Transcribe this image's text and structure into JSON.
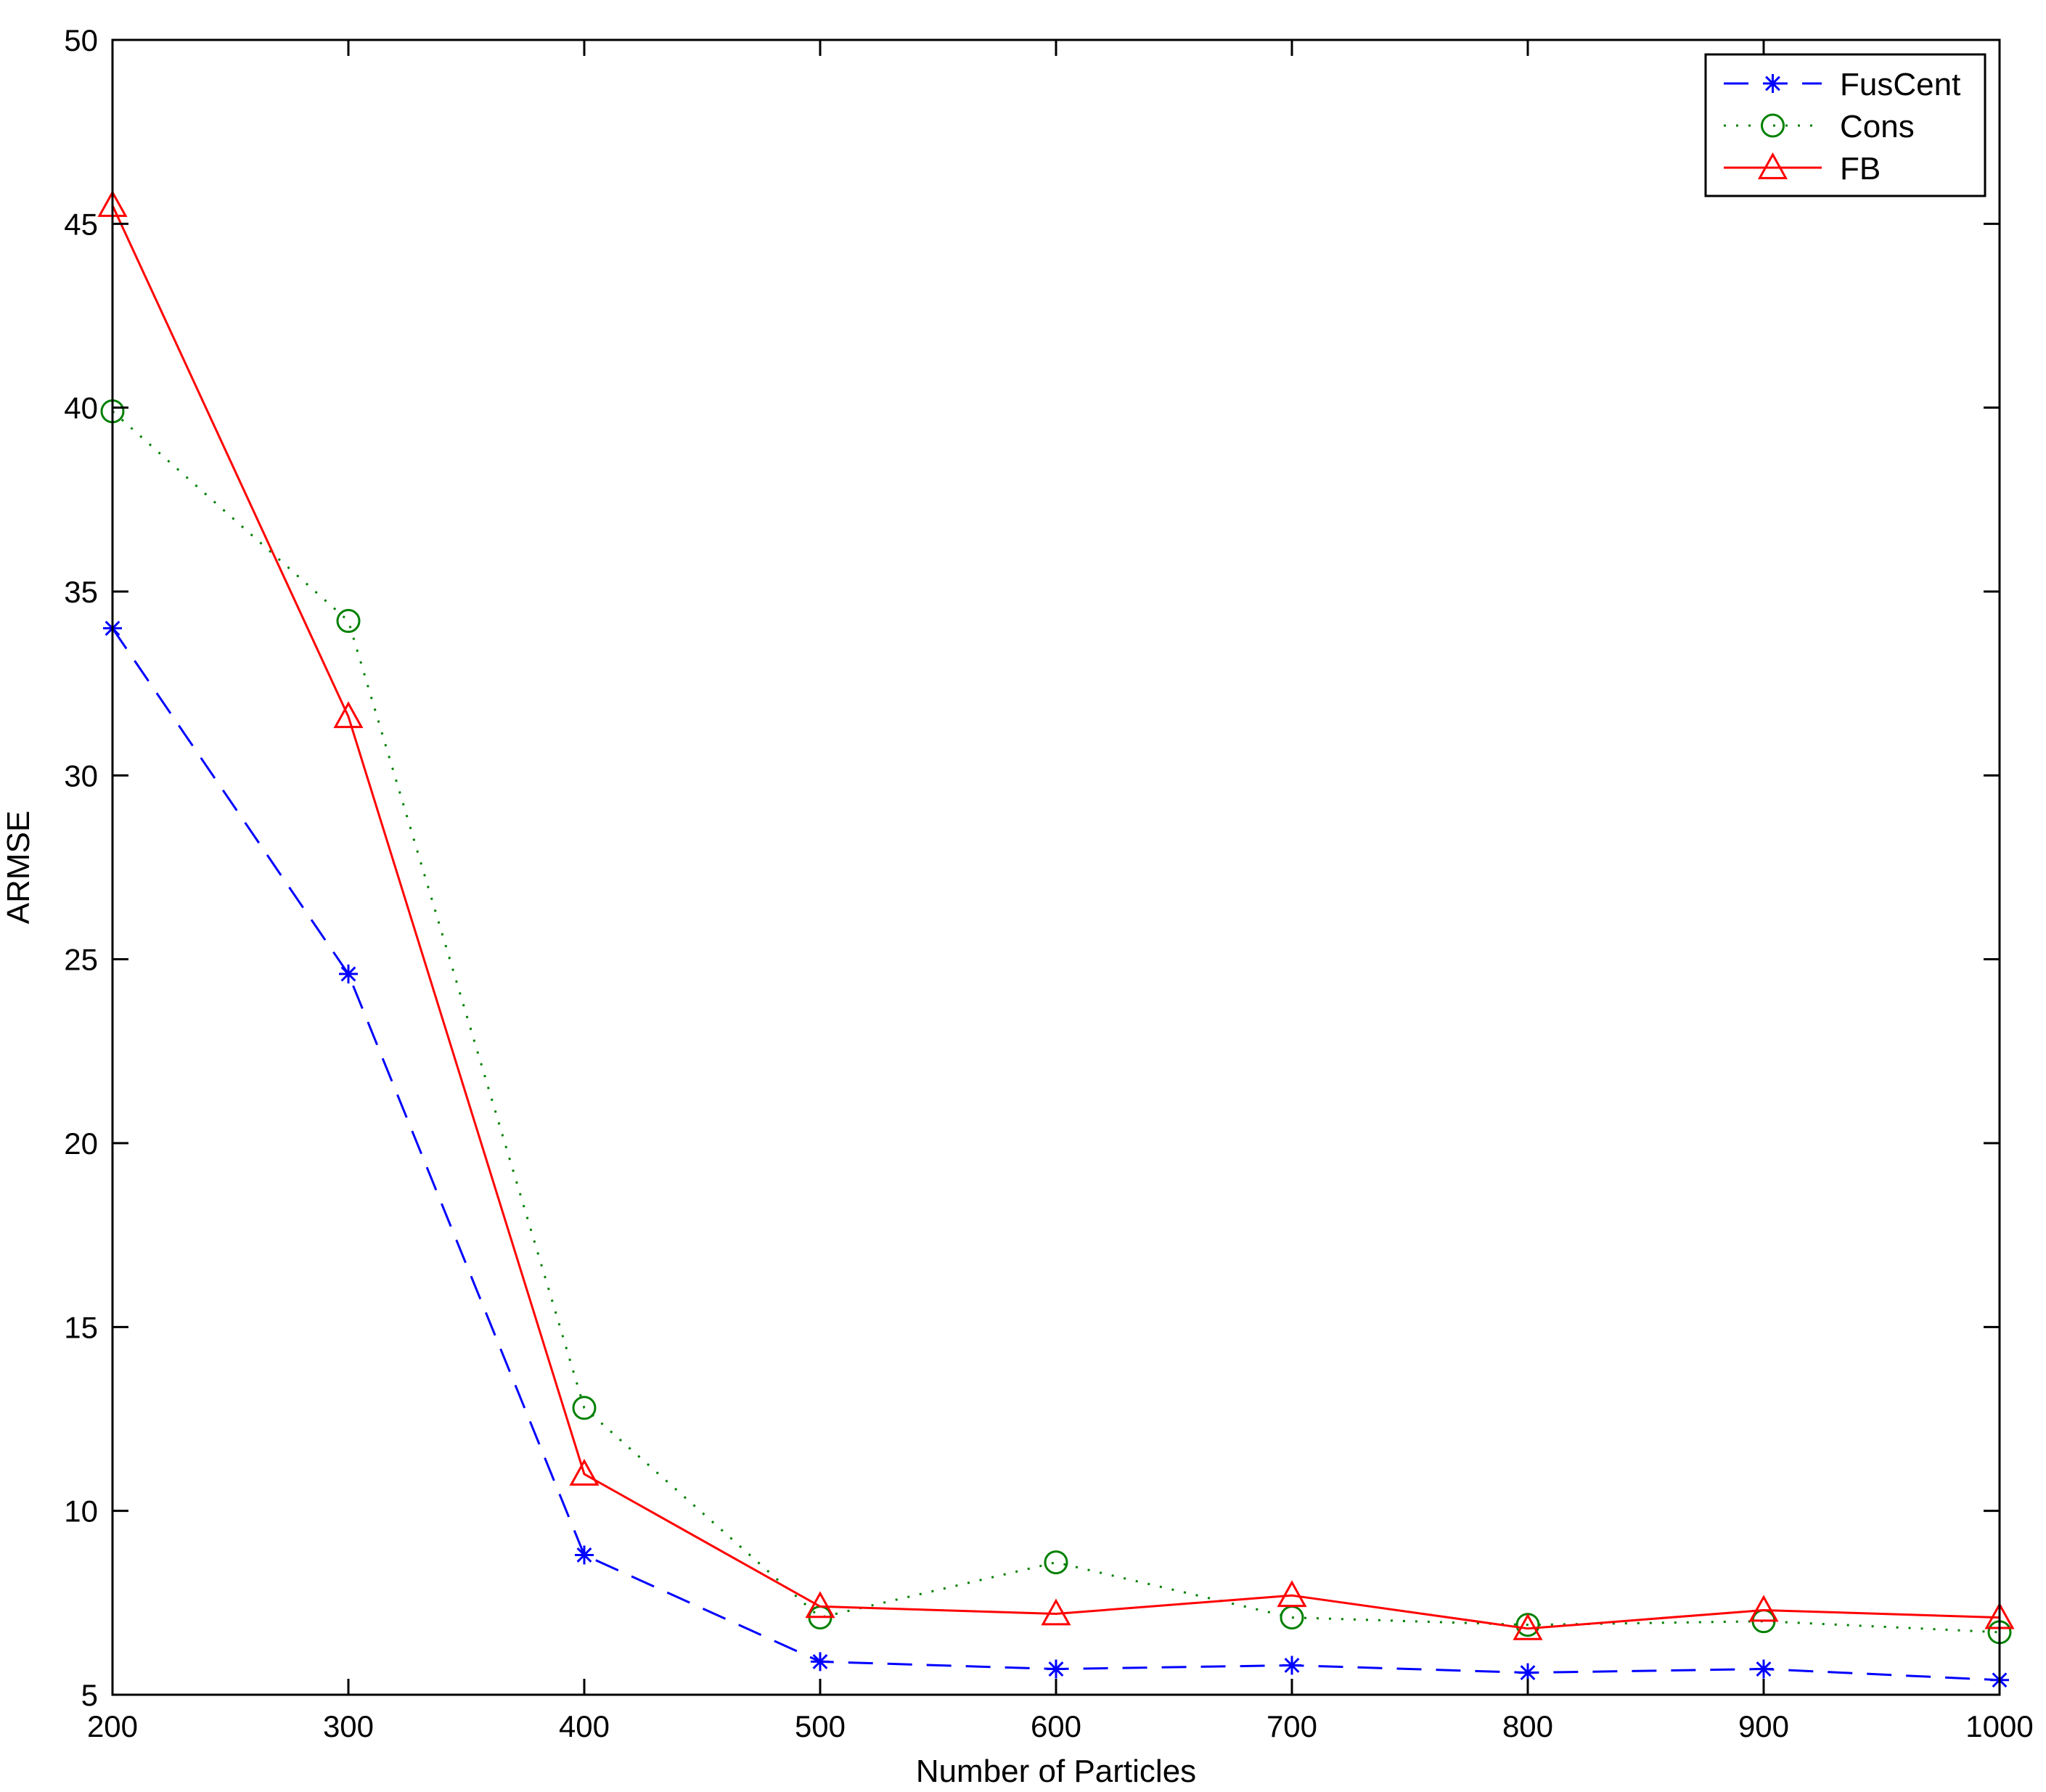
{
  "chart_data": {
    "type": "line",
    "title": "",
    "xlabel": "Number of Particles",
    "ylabel": "ARMSE",
    "x": [
      200,
      300,
      400,
      500,
      600,
      700,
      800,
      900,
      1000
    ],
    "xlim": [
      200,
      1000
    ],
    "ylim": [
      5,
      50
    ],
    "xticks": [
      "200",
      "300",
      "400",
      "500",
      "600",
      "700",
      "800",
      "900",
      "1000"
    ],
    "yticks": [
      "5",
      "10",
      "15",
      "20",
      "25",
      "30",
      "35",
      "40",
      "45",
      "50"
    ],
    "grid": false,
    "legend_position": "top-right",
    "series": [
      {
        "name": "FusCent",
        "color": "#0000ff",
        "line_style": "dashed",
        "marker": "asterisk",
        "values": [
          34.0,
          24.6,
          8.8,
          5.9,
          5.7,
          5.8,
          5.6,
          5.7,
          5.4
        ]
      },
      {
        "name": "Cons",
        "color": "#008000",
        "line_style": "dotted",
        "marker": "circle",
        "values": [
          39.9,
          34.2,
          12.8,
          7.1,
          8.6,
          7.1,
          6.9,
          7.0,
          6.7
        ]
      },
      {
        "name": "FB",
        "color": "#ff0000",
        "line_style": "solid",
        "marker": "triangle",
        "values": [
          45.5,
          31.6,
          11.0,
          7.4,
          7.2,
          7.7,
          6.8,
          7.3,
          7.1
        ]
      }
    ]
  }
}
